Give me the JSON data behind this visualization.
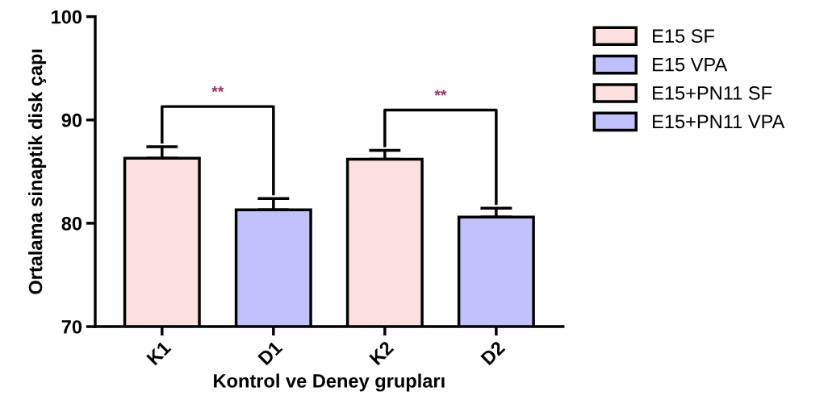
{
  "chart_data": {
    "type": "bar",
    "xlabel": "Kontrol ve Deney grupları",
    "ylabel": "Ortalama sinaptik disk çapı",
    "categories": [
      "K1",
      "D1",
      "K2",
      "D2"
    ],
    "series": [
      {
        "name": "E15 SF",
        "color": "#fce0e0",
        "values": [
          86.3,
          null,
          null,
          null
        ],
        "errors": [
          1.1,
          null,
          null,
          null
        ]
      },
      {
        "name": "E15 VPA",
        "color": "#c0c0fc",
        "values": [
          null,
          81.3,
          null,
          null
        ],
        "errors": [
          null,
          1.1,
          null,
          null
        ]
      },
      {
        "name": "E15+PN11 SF",
        "color": "#fce0e0",
        "values": [
          null,
          null,
          86.2,
          null
        ],
        "errors": [
          null,
          null,
          0.85,
          null
        ]
      },
      {
        "name": "E15+PN11 VPA",
        "color": "#c0c0fc",
        "values": [
          null,
          null,
          null,
          80.6
        ],
        "errors": [
          null,
          null,
          null,
          0.85
        ]
      }
    ],
    "annotations": [
      "**",
      "**"
    ],
    "ylim": [
      70,
      100
    ],
    "yticks": [
      70,
      80,
      90,
      100
    ],
    "grid": false,
    "legend": "top right"
  }
}
